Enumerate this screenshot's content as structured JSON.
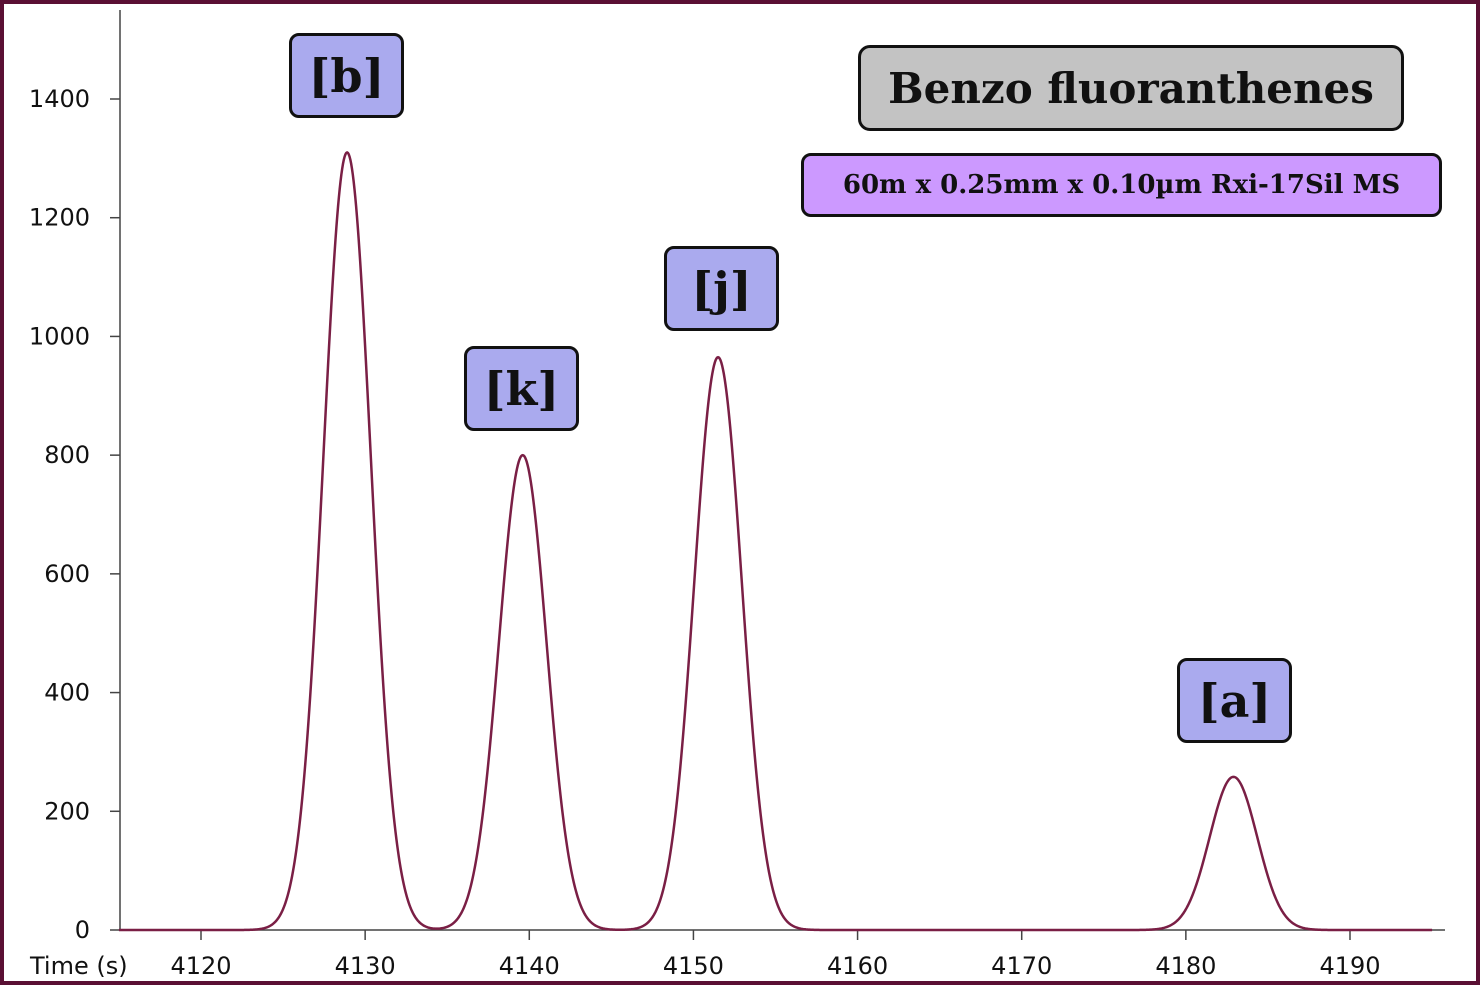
{
  "chart_data": {
    "type": "line",
    "title": "Benzo fluoranthenes",
    "subtitle": "60m x 0.25mm x 0.10µm Rxi-17Sil MS",
    "xlabel": "Time (s)",
    "ylabel": "",
    "xlim": [
      4115,
      4196
    ],
    "ylim": [
      0,
      1560
    ],
    "x_ticks": [
      4120,
      4130,
      4140,
      4150,
      4160,
      4170,
      4180,
      4190
    ],
    "y_ticks": [
      0,
      200,
      400,
      600,
      800,
      1000,
      1200,
      1400
    ],
    "x_tick_labels": [
      "4120",
      "4130",
      "4140",
      "4150",
      "4160",
      "4170",
      "4180",
      "4190"
    ],
    "y_tick_labels": [
      "0",
      "200",
      "400",
      "600",
      "800",
      "1000",
      "1200",
      "1400"
    ],
    "grid": false,
    "series_color": "#7a1f45",
    "peaks": [
      {
        "label": "[b]",
        "time": 4128.9,
        "height": 1310,
        "sigma": 1.45
      },
      {
        "label": "[k]",
        "time": 4139.6,
        "height": 800,
        "sigma": 1.45
      },
      {
        "label": "[j]",
        "time": 4151.5,
        "height": 965,
        "sigma": 1.45
      },
      {
        "label": "[a]",
        "time": 4182.9,
        "height": 258,
        "sigma": 1.45
      }
    ],
    "baseline": 0
  },
  "colors": {
    "frame": "#5a1034",
    "peak_label_fill": "#aaaaee",
    "title_fill": "#c3c3c3",
    "subtitle_fill": "#cc99ff"
  }
}
